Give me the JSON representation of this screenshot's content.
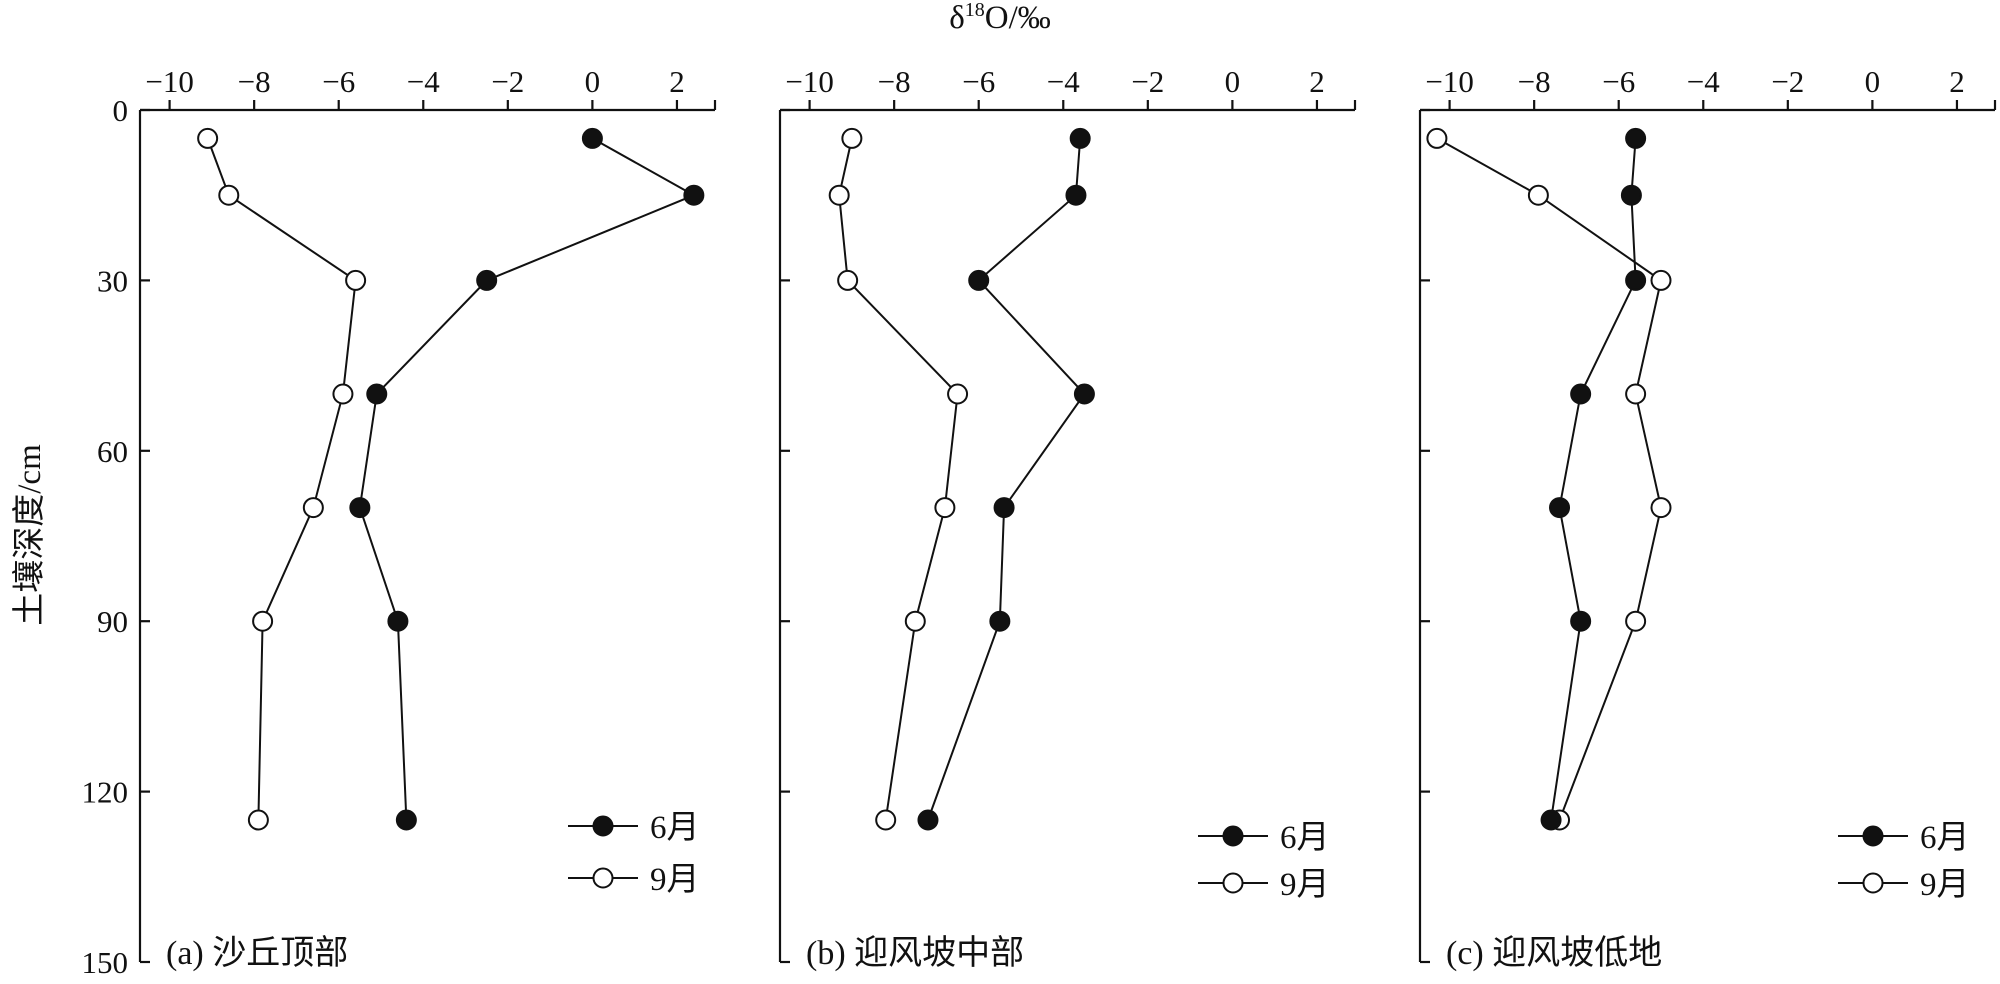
{
  "chart_data": {
    "type": "line",
    "title": "",
    "xlabel_main": "δ",
    "xlabel_sup": "18",
    "xlabel_rest": "O/‰",
    "ylabel": "土壤深度/cm",
    "y_ticks": [
      0,
      30,
      60,
      90,
      120,
      150
    ],
    "y_range": [
      0,
      150
    ],
    "x_ticks": [
      "−10",
      "−8",
      "−6",
      "−4",
      "−2",
      "0",
      "2"
    ],
    "x_tick_values": [
      -10,
      -8,
      -6,
      -4,
      -2,
      0,
      2
    ],
    "x_range": [
      -10.7,
      2.9
    ],
    "depths": [
      5,
      15,
      30,
      50,
      70,
      90,
      125
    ],
    "legend": [
      {
        "name": "6月",
        "marker": "filled-circle"
      },
      {
        "name": "9月",
        "marker": "open-circle"
      }
    ],
    "panels": [
      {
        "label": "(a) 沙丘顶部",
        "series": [
          {
            "name": "6月",
            "values": [
              0.0,
              2.4,
              -2.5,
              -5.1,
              -5.5,
              -4.6,
              -4.4
            ]
          },
          {
            "name": "9月",
            "values": [
              -9.1,
              -8.6,
              -5.6,
              -5.9,
              -6.6,
              -7.8,
              -7.9
            ]
          }
        ]
      },
      {
        "label": "(b) 迎风坡中部",
        "series": [
          {
            "name": "6月",
            "values": [
              -3.6,
              -3.7,
              -6.0,
              -3.5,
              -5.4,
              -5.5,
              -7.2
            ]
          },
          {
            "name": "9月",
            "values": [
              -9.0,
              -9.3,
              -9.1,
              -6.5,
              -6.8,
              -7.5,
              -8.2
            ]
          }
        ]
      },
      {
        "label": "(c) 迎风坡低地",
        "series": [
          {
            "name": "6月",
            "values": [
              -5.6,
              -5.7,
              -5.6,
              -6.9,
              -7.4,
              -6.9,
              -7.6
            ]
          },
          {
            "name": "9月",
            "values": [
              -10.3,
              -7.9,
              -5.0,
              -5.6,
              -5.0,
              -5.6,
              -7.4
            ]
          }
        ]
      }
    ]
  }
}
